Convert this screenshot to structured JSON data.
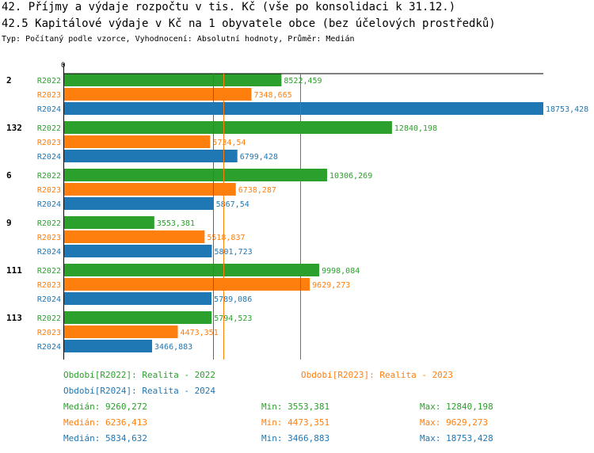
{
  "header": {
    "title1": "42. Příjmy a výdaje rozpočtu v tis. Kč (vše po konsolidaci k 31.12.)",
    "title2": "42.5 Kapitálové výdaje v Kč na 1 obyvatele obce (bez účelových prostředků)",
    "subtitle": "Typ: Počítaný podle vzorce, Vyhodnocení: Absolutní hodnoty, Průměr: Medián"
  },
  "colors": {
    "R2022": "#2ca02c",
    "R2023": "#ff7f0e",
    "R2024": "#1f77b4"
  },
  "chart_data": {
    "type": "bar",
    "orientation": "horizontal",
    "title": "42.5 Kapitálové výdaje v Kč na 1 obyvatele obce (bez účelových prostředků)",
    "axis_zero_label": "0",
    "xlim": [
      0,
      18753.428
    ],
    "categories": [
      "2",
      "132",
      "6",
      "9",
      "111",
      "113"
    ],
    "series": [
      {
        "name": "R2022",
        "values": [
          8522.459,
          12840.198,
          10306.269,
          3553.381,
          9998.084,
          5794.523
        ],
        "labels": [
          "8522,459",
          "12840,198",
          "10306,269",
          "3553,381",
          "9998,084",
          "5794,523"
        ]
      },
      {
        "name": "R2023",
        "values": [
          7348.665,
          5734.54,
          6738.287,
          5518.837,
          9629.273,
          4473.351
        ],
        "labels": [
          "7348,665",
          "5734,54",
          "6738,287",
          "5518,837",
          "9629,273",
          "4473,351"
        ]
      },
      {
        "name": "R2024",
        "values": [
          18753.428,
          6799.428,
          5867.54,
          5801.723,
          5789.086,
          3466.883
        ],
        "labels": [
          "18753,428",
          "6799,428",
          "5867,54",
          "5801,723",
          "5789,086",
          "3466,883"
        ]
      }
    ],
    "medians": [
      9260.272,
      6236.413,
      5834.632
    ]
  },
  "legend": {
    "periods": [
      {
        "text": "Období[R2022]: Realita - 2022"
      },
      {
        "text": "Období[R2023]: Realita - 2023"
      },
      {
        "text": "Období[R2024]: Realita - 2024"
      }
    ],
    "stats": [
      {
        "median": "Medián: 9260,272",
        "min": "Min: 3553,381",
        "max": "Max: 12840,198"
      },
      {
        "median": "Medián: 6236,413",
        "min": "Min: 4473,351",
        "max": "Max: 9629,273"
      },
      {
        "median": "Medián: 5834,632",
        "min": "Min: 3466,883",
        "max": "Max: 18753,428"
      }
    ]
  }
}
